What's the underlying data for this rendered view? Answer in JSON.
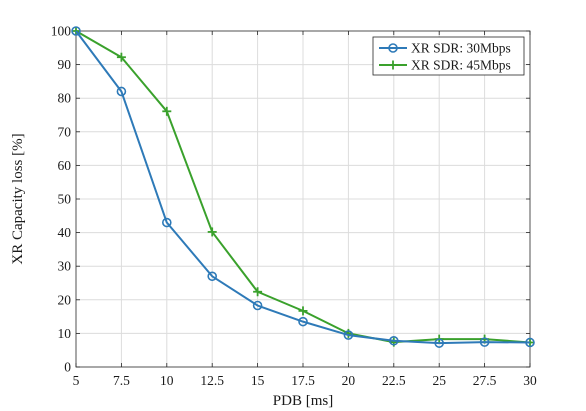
{
  "chart_data": {
    "type": "line",
    "title": "",
    "xlabel": "PDB [ms]",
    "ylabel": "XR Capacity loss [%]",
    "x": [
      5,
      7.5,
      10,
      12.5,
      15,
      17.5,
      20,
      22.5,
      25,
      27.5,
      30
    ],
    "xticks": [
      "5",
      "7.5",
      "10",
      "12.5",
      "15",
      "17.5",
      "20",
      "22.5",
      "25",
      "27.5",
      "30"
    ],
    "yticks": [
      "0",
      "10",
      "20",
      "30",
      "40",
      "50",
      "60",
      "70",
      "80",
      "90",
      "100"
    ],
    "xlim": [
      5,
      30
    ],
    "ylim": [
      0,
      100
    ],
    "grid": true,
    "legend_position": "top-right",
    "series": [
      {
        "name": "XR SDR: 30Mbps",
        "color": "#2e7ab8",
        "marker": "circle",
        "values": [
          100,
          82,
          43,
          27,
          18.3,
          13.5,
          9.5,
          7.8,
          7.1,
          7.4,
          7.3
        ]
      },
      {
        "name": "XR SDR: 45Mbps",
        "color": "#3aa12c",
        "marker": "plus",
        "values": [
          100,
          92.2,
          76.1,
          40.2,
          22.4,
          16.7,
          10,
          7.4,
          8.3,
          8.3,
          7.3
        ]
      }
    ]
  }
}
